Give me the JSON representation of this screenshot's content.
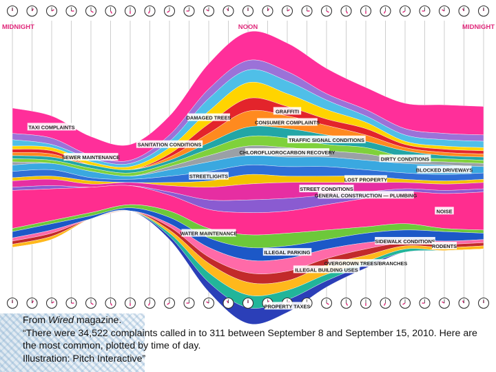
{
  "chart_data": {
    "type": "area",
    "title": "",
    "time_labels": {
      "start": "MIDNIGHT",
      "mid": "NOON",
      "end": "MIDNIGHT"
    },
    "x": [
      0,
      2,
      4,
      6,
      8,
      10,
      12,
      14,
      16,
      18,
      20,
      22,
      24
    ],
    "series": [
      {
        "name": "TAXI COMPLAINTS",
        "color": "#ff2f9a",
        "values": [
          8,
          7,
          6,
          5,
          6,
          8,
          9,
          9,
          8,
          7,
          8,
          9,
          9
        ]
      },
      {
        "name": "SEWER MAINTENANCE",
        "color": "#9b72d8",
        "values": [
          2,
          2,
          1,
          1,
          2,
          3,
          3,
          3,
          2,
          2,
          2,
          2,
          2
        ]
      },
      {
        "name": "SANITATION CONDITIONS",
        "color": "#4fbfe8",
        "values": [
          2,
          1,
          1,
          1,
          2,
          4,
          4,
          4,
          3,
          2,
          2,
          2,
          2
        ]
      },
      {
        "name": "DAMAGED TREES",
        "color": "#ffd400",
        "values": [
          1,
          1,
          1,
          1,
          2,
          4,
          5,
          4,
          3,
          2,
          1,
          1,
          1
        ]
      },
      {
        "name": "GRAFFITI",
        "color": "#e3242b",
        "values": [
          1,
          1,
          0,
          0,
          1,
          3,
          4,
          3,
          2,
          2,
          1,
          1,
          1
        ]
      },
      {
        "name": "CONSUMER COMPLAINTS",
        "color": "#ff8a1f",
        "values": [
          1,
          1,
          0,
          0,
          1,
          3,
          5,
          4,
          3,
          2,
          1,
          1,
          1
        ]
      },
      {
        "name": "TRAFFIC SIGNAL CONDITIONS",
        "color": "#22a6a6",
        "values": [
          1,
          1,
          1,
          1,
          1,
          2,
          3,
          3,
          3,
          2,
          2,
          1,
          1
        ]
      },
      {
        "name": "DIRTY CONDITIONS",
        "color": "#7fd13b",
        "values": [
          1,
          1,
          1,
          1,
          1,
          2,
          3,
          3,
          2,
          2,
          1,
          1,
          1
        ]
      },
      {
        "name": "CHLOROFLUOROCARBON RECOVERY",
        "color": "#9aa0a6",
        "values": [
          1,
          0,
          0,
          0,
          1,
          2,
          3,
          3,
          2,
          2,
          1,
          1,
          1
        ]
      },
      {
        "name": "BLOCKED DRIVEWAYS",
        "color": "#3aa8e0",
        "values": [
          2,
          2,
          2,
          1,
          2,
          3,
          3,
          3,
          3,
          3,
          3,
          3,
          2
        ]
      },
      {
        "name": "STREETLIGHTS",
        "color": "#2f6fd6",
        "values": [
          2,
          2,
          1,
          1,
          2,
          3,
          3,
          3,
          3,
          2,
          2,
          2,
          2
        ]
      },
      {
        "name": "LOST PROPERTY",
        "color": "#f2c200",
        "values": [
          1,
          1,
          1,
          0,
          1,
          2,
          3,
          2,
          2,
          2,
          1,
          1,
          1
        ]
      },
      {
        "name": "STREET CONDITIONS",
        "color": "#e62ea2",
        "values": [
          2,
          2,
          1,
          1,
          2,
          4,
          5,
          5,
          4,
          3,
          2,
          2,
          2
        ]
      },
      {
        "name": "GENERAL CONSTRUCTION — PLUMBING",
        "color": "#8a5bd1",
        "values": [
          1,
          1,
          0,
          0,
          1,
          3,
          4,
          4,
          3,
          2,
          1,
          1,
          1
        ]
      },
      {
        "name": "NOISE",
        "color": "#ff2d8f",
        "values": [
          12,
          10,
          8,
          6,
          5,
          6,
          7,
          7,
          8,
          9,
          10,
          11,
          12
        ]
      },
      {
        "name": "WATER MAINTENANCE",
        "color": "#6dc83a",
        "values": [
          1,
          1,
          1,
          1,
          2,
          3,
          4,
          4,
          3,
          2,
          2,
          1,
          1
        ]
      },
      {
        "name": "ILLEGAL PARKING",
        "color": "#1c58c7",
        "values": [
          2,
          2,
          1,
          1,
          2,
          3,
          4,
          4,
          3,
          3,
          3,
          3,
          2
        ]
      },
      {
        "name": "SIDEWALK CONDITIONS",
        "color": "#ff6aa8",
        "values": [
          1,
          1,
          0,
          0,
          1,
          3,
          4,
          4,
          3,
          2,
          1,
          1,
          1
        ]
      },
      {
        "name": "RODENTS",
        "color": "#c22a2a",
        "values": [
          1,
          1,
          0,
          0,
          1,
          2,
          3,
          3,
          2,
          2,
          1,
          1,
          1
        ]
      },
      {
        "name": "ILLEGAL BUILDING USES",
        "color": "#ffb81c",
        "values": [
          1,
          1,
          0,
          0,
          1,
          3,
          4,
          3,
          3,
          2,
          1,
          1,
          1
        ]
      },
      {
        "name": "OVERGROWN TREES/BRANCHES",
        "color": "#22b59a",
        "values": [
          0,
          0,
          0,
          0,
          1,
          3,
          4,
          3,
          2,
          1,
          1,
          0,
          0
        ]
      },
      {
        "name": "PROPERTY TAXES",
        "color": "#2b3fb8",
        "values": [
          0,
          0,
          0,
          0,
          1,
          3,
          5,
          4,
          2,
          1,
          0,
          0,
          0
        ]
      }
    ]
  },
  "caption": {
    "source_prefix": "From ",
    "source_italic": "Wired",
    "source_suffix": " magazine.",
    "quote": "“There were 34,522 complaints called in to 311 between September 8 and September 15, 2010. Here are the most common, plotted by time of day.",
    "credit": "Illustration: Pitch Interactive”"
  }
}
